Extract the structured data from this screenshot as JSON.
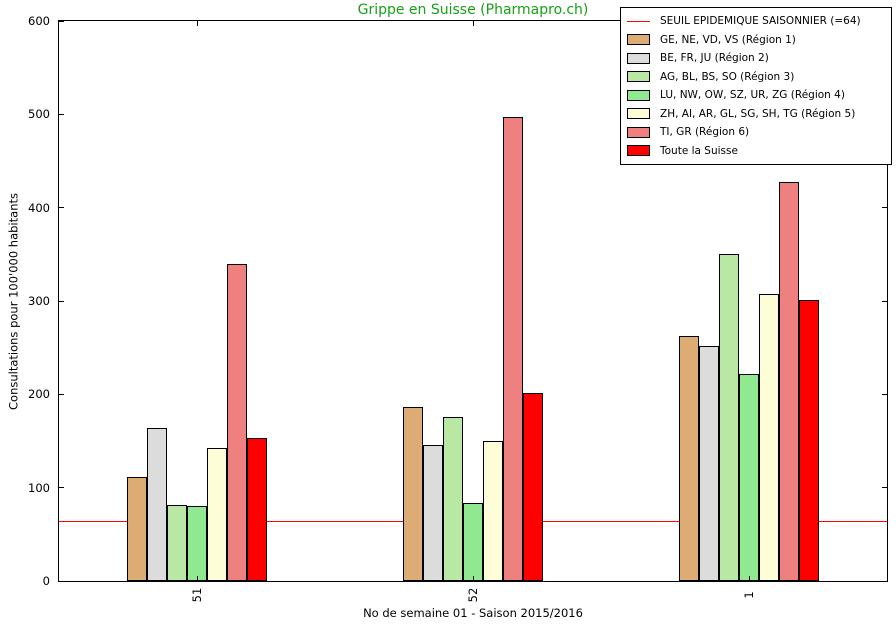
{
  "title": "Grippe en Suisse (Pharmapro.ch)",
  "title_color": "#17a017",
  "ylabel": "Consultations pour 100'000 habitants",
  "xlabel": "No de semaine 01 - Saison 2015/2016",
  "chart_data": {
    "type": "bar",
    "categories": [
      "51",
      "52",
      "1"
    ],
    "series": [
      {
        "name": "GE, NE, VD, VS (Région 1)",
        "color": "#ddab74",
        "values": [
          111,
          186,
          262
        ]
      },
      {
        "name": "BE, FR, JU (Région 2)",
        "color": "#dcdcdc",
        "values": [
          164,
          146,
          252
        ]
      },
      {
        "name": "AG, BL, BS, SO (Région 3)",
        "color": "#b8e8a4",
        "values": [
          81,
          176,
          350
        ]
      },
      {
        "name": "LU, NW, OW, SZ, UR, ZG (Région 4)",
        "color": "#90e890",
        "values": [
          80,
          84,
          222
        ]
      },
      {
        "name": "ZH, AI, AR, GL, SG, SH, TG (Région 5)",
        "color": "#fdfdd8",
        "values": [
          142,
          150,
          307
        ]
      },
      {
        "name": "TI, GR (Région 6)",
        "color": "#ee8080",
        "values": [
          340,
          497,
          428
        ]
      },
      {
        "name": "Toute la Suisse",
        "color": "#ff0000",
        "values": [
          153,
          201,
          301
        ]
      }
    ],
    "threshold": {
      "label": "SEUIL EPIDEMIQUE SAISONNIER (=64)",
      "value": 64,
      "color": "#ff0000"
    },
    "ylim": [
      0,
      600
    ],
    "yticks": [
      0,
      100,
      200,
      300,
      400,
      500,
      600
    ],
    "grid": false,
    "legend_position": "top-right",
    "bar_edge_color": "#000000"
  }
}
